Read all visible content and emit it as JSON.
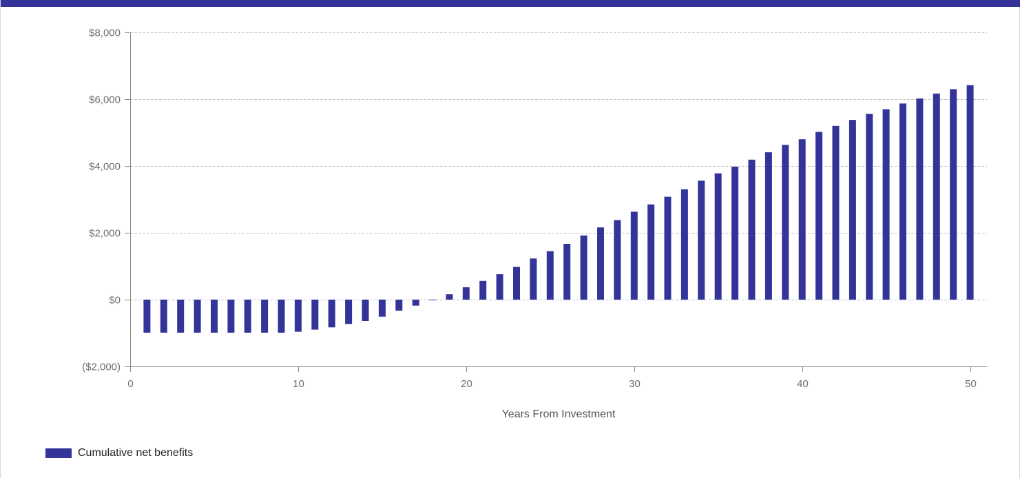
{
  "chart_data": {
    "type": "bar",
    "title": "",
    "xlabel": "Years From Investment",
    "ylabel": "",
    "xlim": [
      0,
      51
    ],
    "ylim": [
      -2000,
      8000
    ],
    "x_ticks": [
      0,
      10,
      20,
      30,
      40,
      50
    ],
    "x_tick_labels": [
      "0",
      "10",
      "20",
      "30",
      "40",
      "50"
    ],
    "y_ticks": [
      -2000,
      0,
      2000,
      4000,
      6000,
      8000
    ],
    "y_tick_labels": [
      "($2,000)",
      "$0",
      "$2,000",
      "$4,000",
      "$6,000",
      "$8,000"
    ],
    "grid": true,
    "legend_position": "bottom-left",
    "color": "#33339a",
    "series": [
      {
        "name": "Cumulative net benefits",
        "x": [
          1,
          2,
          3,
          4,
          5,
          6,
          7,
          8,
          9,
          10,
          11,
          12,
          13,
          14,
          15,
          16,
          17,
          18,
          19,
          20,
          21,
          22,
          23,
          24,
          25,
          26,
          27,
          28,
          29,
          30,
          31,
          32,
          33,
          34,
          35,
          36,
          37,
          38,
          39,
          40,
          41,
          42,
          43,
          44,
          45,
          46,
          47,
          48,
          49,
          50
        ],
        "values": [
          -990,
          -990,
          -990,
          -990,
          -990,
          -990,
          -990,
          -990,
          -990,
          -960,
          -900,
          -830,
          -730,
          -640,
          -510,
          -330,
          -180,
          -20,
          160,
          370,
          560,
          760,
          980,
          1230,
          1450,
          1670,
          1920,
          2160,
          2380,
          2630,
          2850,
          3080,
          3300,
          3560,
          3780,
          3980,
          4190,
          4410,
          4630,
          4800,
          5020,
          5200,
          5380,
          5560,
          5700,
          5870,
          6020,
          6170,
          6300,
          6420
        ]
      }
    ]
  },
  "legend": {
    "label": "Cumulative net benefits"
  }
}
